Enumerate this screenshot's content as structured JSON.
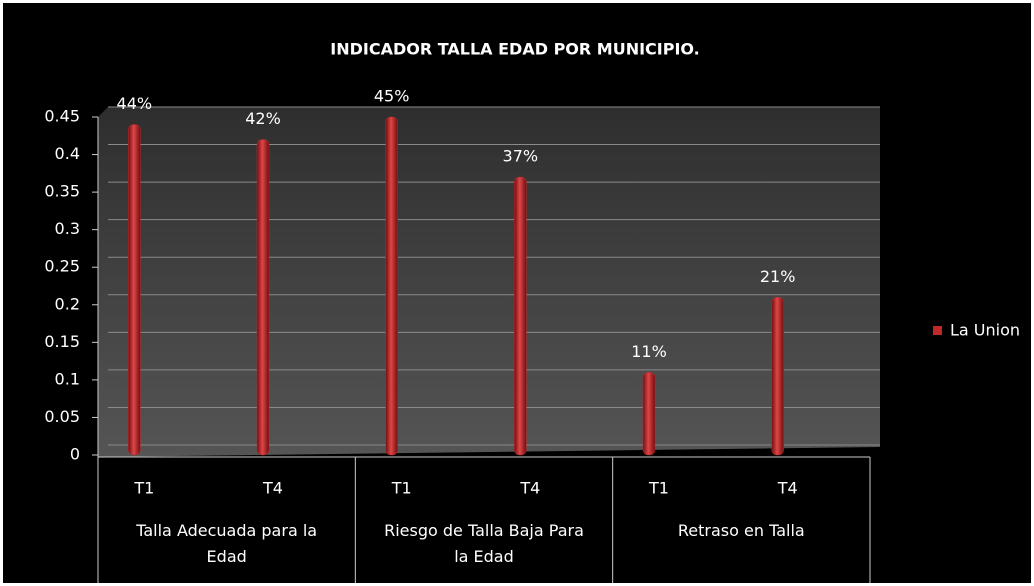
{
  "chart_data": {
    "type": "bar",
    "title": "INDICADOR TALLA EDAD POR MUNICIPIO.",
    "categories": [
      "T1",
      "T4",
      "T1",
      "T4",
      "T1",
      "T4"
    ],
    "groups": [
      "Talla Adecuada para la Edad",
      "Riesgo de Talla Baja Para la Edad",
      "Retraso en Talla"
    ],
    "series": [
      {
        "name": "La Union",
        "color": "#c0282a",
        "values": [
          0.44,
          0.42,
          0.45,
          0.37,
          0.11,
          0.21
        ],
        "value_labels": [
          "44%",
          "42%",
          "45%",
          "37%",
          "11%",
          "21%"
        ]
      }
    ],
    "ylim": [
      0,
      0.45
    ],
    "yticks": [
      0,
      0.05,
      0.1,
      0.15,
      0.2,
      0.25,
      0.3,
      0.35,
      0.4,
      0.45
    ],
    "grid": true,
    "legend": "right"
  }
}
